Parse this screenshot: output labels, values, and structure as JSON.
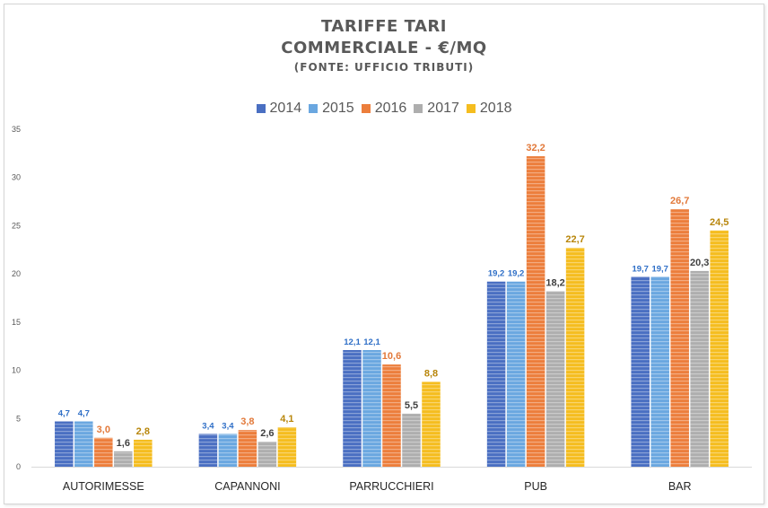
{
  "title": {
    "line1": "TARIFFE TARI",
    "line2": "COMMERCIALE - €/MQ",
    "line3": "(FONTE: UFFICIO TRIBUTI)"
  },
  "chart_data": {
    "type": "bar",
    "title": "TARIFFE TARI COMMERCIALE - €/MQ",
    "subtitle": "(FONTE: UFFICIO TRIBUTI)",
    "categories": [
      "AUTORIMESSE",
      "CAPANNONI",
      "PARRUCCHIERI",
      "PUB",
      "BAR"
    ],
    "series": [
      {
        "name": "2014",
        "values": [
          4.7,
          3.4,
          12.1,
          19.2,
          19.7
        ],
        "labels": [
          "4,7",
          "3,4",
          "12,1",
          "19,2",
          "19,7"
        ],
        "color": "#4A6FC2",
        "label_color": "#2F6FC7"
      },
      {
        "name": "2015",
        "values": [
          4.7,
          3.4,
          12.1,
          19.2,
          19.7
        ],
        "labels": [
          "4,7",
          "3,4",
          "12,1",
          "19,2",
          "19,7"
        ],
        "color": "#6AA7E0",
        "label_color": "#2F6FC7"
      },
      {
        "name": "2016",
        "values": [
          3.0,
          3.8,
          10.6,
          32.2,
          26.7
        ],
        "labels": [
          "3,0",
          "3,8",
          "10,6",
          "32,2",
          "26,7"
        ],
        "color": "#EC7E3C",
        "label_color": "#E2793A"
      },
      {
        "name": "2017",
        "values": [
          1.6,
          2.6,
          5.5,
          18.2,
          20.3
        ],
        "labels": [
          "1,6",
          "2,6",
          "5,5",
          "18,2",
          "20,3"
        ],
        "color": "#AEAEAE",
        "label_color": "#404040"
      },
      {
        "name": "2018",
        "values": [
          2.8,
          4.1,
          8.8,
          22.7,
          24.5
        ],
        "labels": [
          "2,8",
          "4,1",
          "8,8",
          "22,7",
          "24,5"
        ],
        "color": "#F5BD1F",
        "label_color": "#B8860B"
      }
    ],
    "ylim": [
      0,
      35
    ],
    "yticks": [
      0,
      5,
      10,
      15,
      20,
      25,
      30,
      35
    ],
    "xlabel": "",
    "ylabel": "",
    "grid": false,
    "legend_position": "top"
  }
}
